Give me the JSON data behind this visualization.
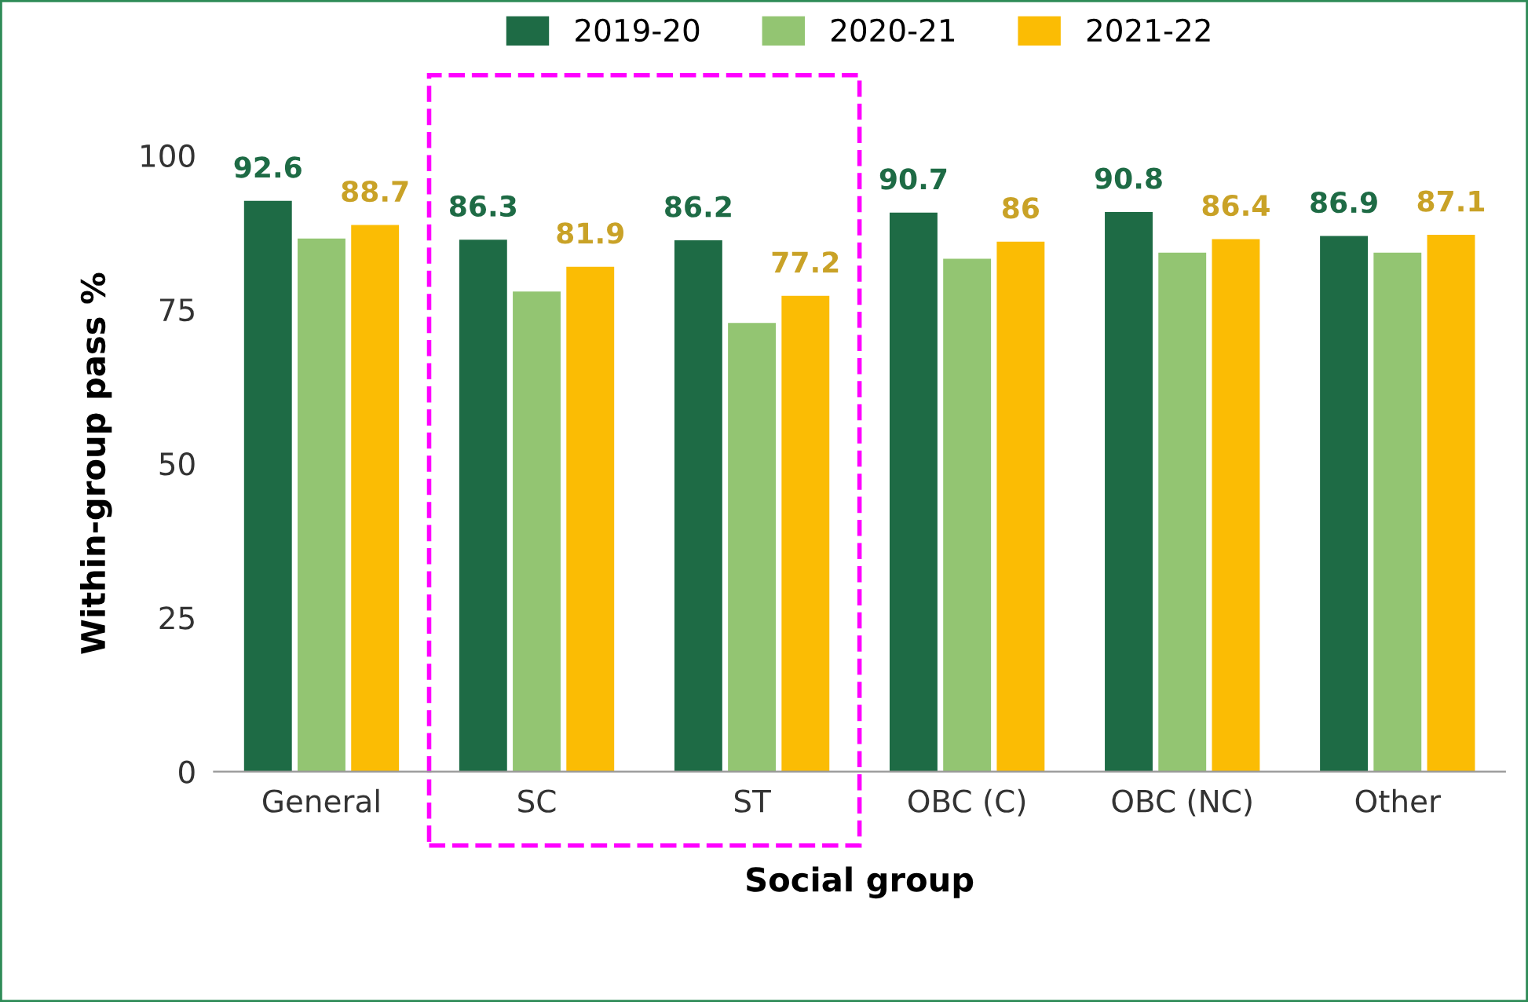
{
  "chart_data": {
    "type": "bar",
    "xlabel": "Social group",
    "ylabel": "Within-group pass %",
    "categories": [
      "General",
      "SC",
      "ST",
      "OBC (C)",
      "OBC (NC)",
      "Other"
    ],
    "series": [
      {
        "name": "2019-20",
        "color": "#1e6b45",
        "values": [
          92.6,
          86.3,
          86.2,
          90.7,
          90.8,
          86.9
        ],
        "value_labels": [
          "92.6",
          "86.3",
          "86.2",
          "90.7",
          "90.8",
          "86.9"
        ]
      },
      {
        "name": "2020-21",
        "color": "#93c572",
        "values": [
          86.5,
          77.9,
          72.8,
          83.2,
          84.2,
          84.2
        ]
      },
      {
        "name": "2021-22",
        "color": "#fbbc04",
        "values": [
          88.7,
          81.9,
          77.2,
          86,
          86.4,
          87.1
        ],
        "value_labels": [
          "88.7",
          "81.9",
          "77.2",
          "86",
          "86.4",
          "87.1"
        ]
      }
    ],
    "ylim": [
      0,
      100
    ],
    "yticks": [
      0,
      25,
      50,
      75,
      100
    ],
    "grid": false,
    "legend": "top"
  }
}
